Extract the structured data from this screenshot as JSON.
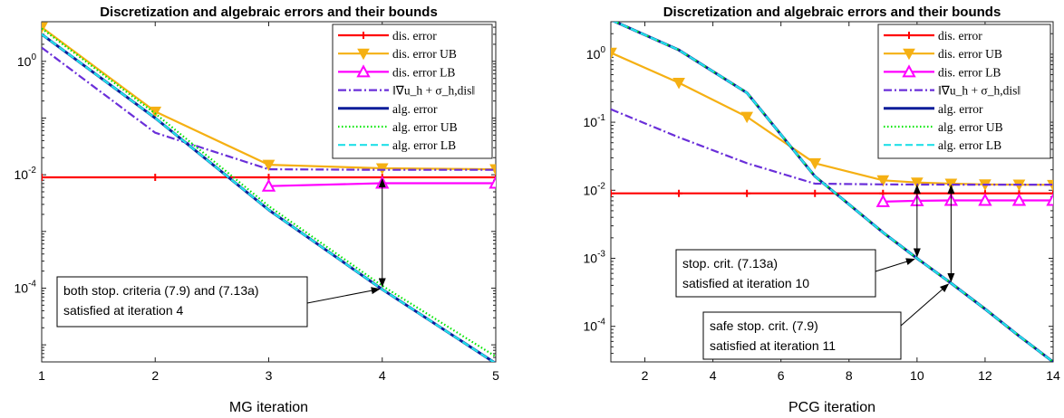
{
  "chart_data": [
    {
      "type": "line",
      "title": "Discretization and algebraic errors and their bounds",
      "xlabel": "MG iteration",
      "ylabel": "",
      "yscale": "log",
      "xlim": [
        1,
        5
      ],
      "ylim": [
        5e-06,
        5
      ],
      "grid": false,
      "legend_position": "top-right",
      "x_ticks": [
        "1",
        "2",
        "3",
        "4",
        "5"
      ],
      "y_ticks": [
        {
          "value": 0.0001,
          "base": "10",
          "exp": "-4"
        },
        {
          "value": 0.01,
          "base": "10",
          "exp": "-2"
        },
        {
          "value": 1,
          "base": "10",
          "exp": "0"
        }
      ],
      "series": [
        {
          "name": "dis. error",
          "color": "#ff0000",
          "dash": "solid",
          "marker": "plus",
          "x": [
            1,
            2,
            3,
            4,
            5
          ],
          "values": [
            0.009,
            0.009,
            0.009,
            0.009,
            0.009
          ]
        },
        {
          "name": "dis. error UB",
          "color": "#f5b013",
          "dash": "solid",
          "marker": "triangle-down",
          "x": [
            1,
            2,
            3,
            4,
            5
          ],
          "values": [
            4.0,
            0.13,
            0.015,
            0.013,
            0.0125
          ]
        },
        {
          "name": "dis. error LB",
          "color": "#ff00ff",
          "dash": "solid",
          "marker": "triangle-up",
          "x": [
            3,
            4,
            5
          ],
          "values": [
            0.0063,
            0.0071,
            0.0071
          ]
        },
        {
          "name": "‖∇u_h + σ_h,dis‖",
          "color": "#6a2fd9",
          "dash": "dashdot",
          "marker": "none",
          "x": [
            1,
            2,
            3,
            4,
            5
          ],
          "values": [
            1.75,
            0.055,
            0.0125,
            0.0122,
            0.0122
          ]
        },
        {
          "name": "alg. error",
          "color": "#0b1d9a",
          "dash": "solid",
          "marker": "none",
          "x": [
            1,
            2,
            3,
            4,
            5
          ],
          "values": [
            3.0,
            0.1,
            0.0024,
            9.5e-05,
            4.7e-06
          ]
        },
        {
          "name": "alg. error UB",
          "color": "#00e600",
          "dash": "dotted",
          "marker": "none",
          "x": [
            1,
            2,
            3,
            4,
            5
          ],
          "values": [
            3.8,
            0.12,
            0.0028,
            0.00011,
            6.2e-06
          ]
        },
        {
          "name": "alg. error LB",
          "color": "#22e0e8",
          "dash": "dashed",
          "marker": "none",
          "x": [
            1,
            2,
            3,
            4,
            5
          ],
          "values": [
            3.0,
            0.1,
            0.0024,
            9.5e-05,
            4.7e-06
          ]
        }
      ],
      "arrows": [
        {
          "x": 4,
          "from": 0.009,
          "to": 0.0001
        }
      ],
      "annotations": [
        {
          "lines": [
            "both stop. criteria (7.9) and (7.13a)",
            "satisfied at iteration 4"
          ],
          "point": {
            "x": 4,
            "y": 0.0001
          }
        }
      ]
    },
    {
      "type": "line",
      "title": "Discretization and algebraic errors and their bounds",
      "xlabel": "PCG iteration",
      "ylabel": "",
      "yscale": "log",
      "xlim": [
        1,
        14
      ],
      "ylim": [
        3e-05,
        3
      ],
      "grid": false,
      "legend_position": "top-right",
      "x_ticks": [
        "2",
        "4",
        "6",
        "8",
        "10",
        "12",
        "14"
      ],
      "y_ticks": [
        {
          "value": 0.0001,
          "base": "10",
          "exp": "-4"
        },
        {
          "value": 0.001,
          "base": "10",
          "exp": "-3"
        },
        {
          "value": 0.01,
          "base": "10",
          "exp": "-2"
        },
        {
          "value": 0.1,
          "base": "10",
          "exp": "-1"
        },
        {
          "value": 1,
          "base": "10",
          "exp": "0"
        }
      ],
      "series": [
        {
          "name": "dis. error",
          "color": "#ff0000",
          "dash": "solid",
          "marker": "plus",
          "x": [
            1,
            3,
            5,
            7,
            9,
            10,
            11,
            12,
            13,
            14
          ],
          "values": [
            0.009,
            0.009,
            0.009,
            0.009,
            0.009,
            0.009,
            0.009,
            0.009,
            0.009,
            0.009
          ]
        },
        {
          "name": "dis. error UB",
          "color": "#f5b013",
          "dash": "solid",
          "marker": "triangle-down",
          "x": [
            1,
            3,
            5,
            7,
            9,
            10,
            11,
            12,
            13,
            14
          ],
          "values": [
            1.05,
            0.38,
            0.12,
            0.025,
            0.014,
            0.013,
            0.0125,
            0.0122,
            0.0121,
            0.012
          ]
        },
        {
          "name": "dis. error LB",
          "color": "#ff00ff",
          "dash": "solid",
          "marker": "triangle-up",
          "x": [
            9,
            10,
            11,
            12,
            13,
            14
          ],
          "values": [
            0.0068,
            0.007,
            0.0071,
            0.0071,
            0.0071,
            0.0071
          ]
        },
        {
          "name": "‖∇u_h + σ_h,dis‖",
          "color": "#6a2fd9",
          "dash": "dashdot",
          "marker": "none",
          "x": [
            1,
            3,
            5,
            7,
            9,
            11,
            14
          ],
          "values": [
            0.155,
            0.06,
            0.025,
            0.0125,
            0.0122,
            0.0121,
            0.0121
          ]
        },
        {
          "name": "alg. error",
          "color": "#0b1d9a",
          "dash": "solid",
          "marker": "none",
          "x": [
            1,
            3,
            5,
            7,
            9,
            10,
            11,
            12,
            13,
            14
          ],
          "values": [
            3.2,
            1.15,
            0.27,
            0.016,
            0.0024,
            0.001,
            0.00043,
            0.00018,
            7.2e-05,
            3e-05
          ]
        },
        {
          "name": "alg. error UB",
          "color": "#00e600",
          "dash": "dotted",
          "marker": "none",
          "x": [
            1,
            3,
            5,
            7,
            9,
            10,
            11,
            12,
            13,
            14
          ],
          "values": [
            3.2,
            1.15,
            0.27,
            0.016,
            0.0024,
            0.001,
            0.00043,
            0.00018,
            7.2e-05,
            3e-05
          ]
        },
        {
          "name": "alg. error LB",
          "color": "#22e0e8",
          "dash": "dashed",
          "marker": "none",
          "x": [
            1,
            3,
            5,
            7,
            9,
            10,
            11,
            12,
            13,
            14
          ],
          "values": [
            3.2,
            1.15,
            0.27,
            0.016,
            0.0024,
            0.001,
            0.00043,
            0.00018,
            7.2e-05,
            3e-05
          ]
        }
      ],
      "arrows": [
        {
          "x": 10,
          "from": 0.0125,
          "to": 0.001
        },
        {
          "x": 11,
          "from": 0.0125,
          "to": 0.00043
        }
      ],
      "annotations": [
        {
          "lines": [
            "stop. crit. (7.13a)",
            "satisfied at iteration 10"
          ],
          "point": {
            "x": 10,
            "y": 0.001
          }
        },
        {
          "lines": [
            "safe stop. crit. (7.9)",
            "satisfied at iteration 11"
          ],
          "point": {
            "x": 11,
            "y": 0.00043
          }
        }
      ]
    }
  ]
}
